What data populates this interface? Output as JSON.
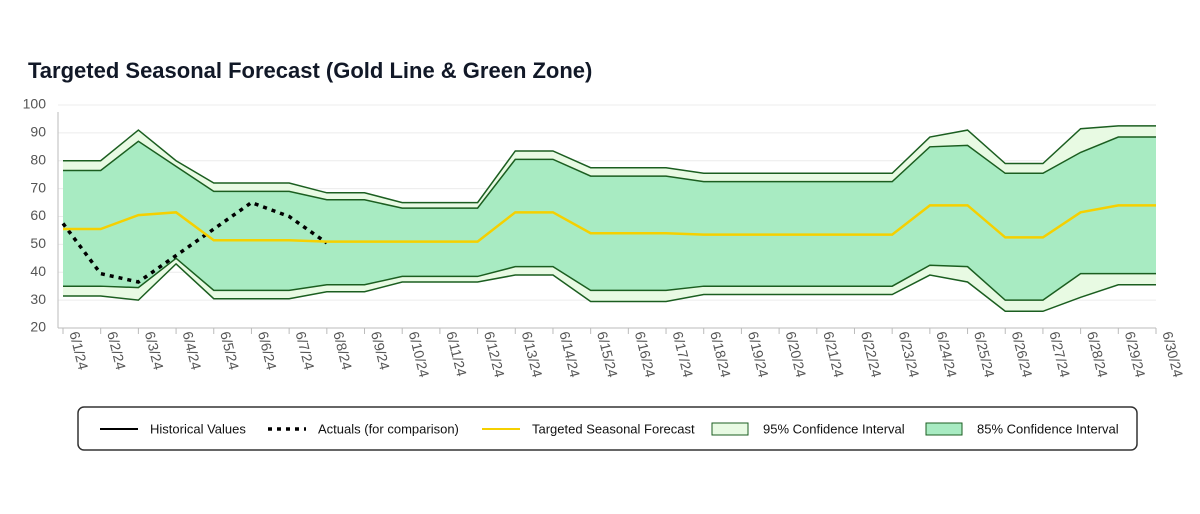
{
  "chart_data": {
    "type": "line",
    "title": "Targeted Seasonal Forecast (Gold Line & Green Zone)",
    "categories": [
      "6/1/24",
      "6/2/24",
      "6/3/24",
      "6/4/24",
      "6/5/24",
      "6/6/24",
      "6/7/24",
      "6/8/24",
      "6/9/24",
      "6/10/24",
      "6/11/24",
      "6/12/24",
      "6/13/24",
      "6/14/24",
      "6/15/24",
      "6/16/24",
      "6/17/24",
      "6/18/24",
      "6/19/24",
      "6/20/24",
      "6/21/24",
      "6/22/24",
      "6/23/24",
      "6/24/24",
      "6/25/24",
      "6/26/24",
      "6/27/24",
      "6/28/24",
      "6/29/24",
      "6/30/24"
    ],
    "ylim": [
      20,
      100
    ],
    "yticks": [
      20,
      30,
      40,
      50,
      60,
      70,
      80,
      90,
      100
    ],
    "grid": true,
    "series": [
      {
        "name": "Historical Values",
        "kind": "line",
        "color": "#000000",
        "dash": "solid",
        "values": [
          null,
          null,
          null,
          null,
          null,
          null,
          null,
          null,
          null,
          null,
          null,
          null,
          null,
          null,
          null,
          null,
          null,
          null,
          null,
          null,
          null,
          null,
          null,
          null,
          null,
          null,
          null,
          null,
          null,
          null
        ]
      },
      {
        "name": "Actuals (for comparison)",
        "kind": "line",
        "color": "#000000",
        "dash": "dotted",
        "values": [
          57.5,
          39.5,
          36.5,
          46,
          55.5,
          65,
          60,
          50.5,
          null,
          null,
          null,
          null,
          null,
          null,
          null,
          null,
          null,
          null,
          null,
          null,
          null,
          null,
          null,
          null,
          null,
          null,
          null,
          null,
          null,
          null
        ]
      },
      {
        "name": "Targeted Seasonal Forecast",
        "kind": "line",
        "color": "#f5d000",
        "dash": "solid",
        "values": [
          55.5,
          55.5,
          60.5,
          61.5,
          51.5,
          51.5,
          51.5,
          51,
          51,
          51,
          51,
          51,
          61.5,
          61.5,
          54,
          54,
          54,
          53.5,
          53.5,
          53.5,
          53.5,
          53.5,
          53.5,
          64,
          64,
          52.5,
          52.5,
          61.5,
          64,
          64
        ]
      },
      {
        "name": "95% Confidence Interval",
        "kind": "band",
        "color": "#e8fae3",
        "stroke": "#1b5e20",
        "upper": [
          80,
          80,
          91,
          80,
          72,
          72,
          72,
          68.5,
          68.5,
          65,
          65,
          65,
          83.5,
          83.5,
          77.5,
          77.5,
          77.5,
          75.5,
          75.5,
          75.5,
          75.5,
          75.5,
          75.5,
          88.5,
          91,
          79,
          79,
          91.5,
          92.5,
          92.5
        ],
        "lower": [
          31.5,
          31.5,
          30,
          43,
          30.5,
          30.5,
          30.5,
          33,
          33,
          36.5,
          36.5,
          36.5,
          39,
          39,
          29.5,
          29.5,
          29.5,
          32,
          32,
          32,
          32,
          32,
          32,
          39,
          36.5,
          26,
          26,
          31,
          35.5,
          35.5
        ]
      },
      {
        "name": "85% Confidence Interval",
        "kind": "band",
        "color": "#a8ebc2",
        "stroke": "#1b5e20",
        "upper": [
          76.5,
          76.5,
          87,
          78,
          69,
          69,
          69,
          66,
          66,
          63,
          63,
          63,
          80.5,
          80.5,
          74.5,
          74.5,
          74.5,
          72.5,
          72.5,
          72.5,
          72.5,
          72.5,
          72.5,
          85,
          85.5,
          75.5,
          75.5,
          83,
          88.5,
          88.5
        ],
        "lower": [
          35,
          35,
          34.5,
          45,
          33.5,
          33.5,
          33.5,
          35.5,
          35.5,
          38.5,
          38.5,
          38.5,
          42,
          42,
          33.5,
          33.5,
          33.5,
          35,
          35,
          35,
          35,
          35,
          35,
          42.5,
          42,
          30,
          30,
          39.5,
          39.5,
          39.5
        ]
      }
    ]
  }
}
